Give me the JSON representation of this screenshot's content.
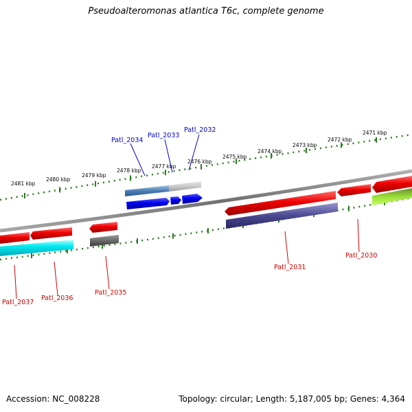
{
  "title": "Pseudoalteromonas atlantica T6c, complete genome",
  "footer": {
    "accession": "Accession: NC_008228",
    "summary": "Topology: circular; Length: 5,187,005 bp; Genes: 4,364"
  },
  "kbp_labels": [
    "2481 kbp",
    "2480 kbp",
    "2479 kbp",
    "2478 kbp",
    "2477 kbp",
    "2476 kbp",
    "2475 kbp",
    "2474 kbp",
    "2473 kbp",
    "2472 kbp",
    "2471 kbp"
  ],
  "genes_top": [
    "Patl_2034",
    "Patl_2033",
    "Patl_2032"
  ],
  "genes_bottom": [
    "Patl_2037",
    "Patl_2036",
    "Patl_2035",
    "Patl_2031",
    "Patl_2030"
  ],
  "colors": {
    "forward_label": "#0000cc",
    "reverse_label": "#cc0000",
    "ruler": "#2a7a1f",
    "backbone": "#808080"
  }
}
